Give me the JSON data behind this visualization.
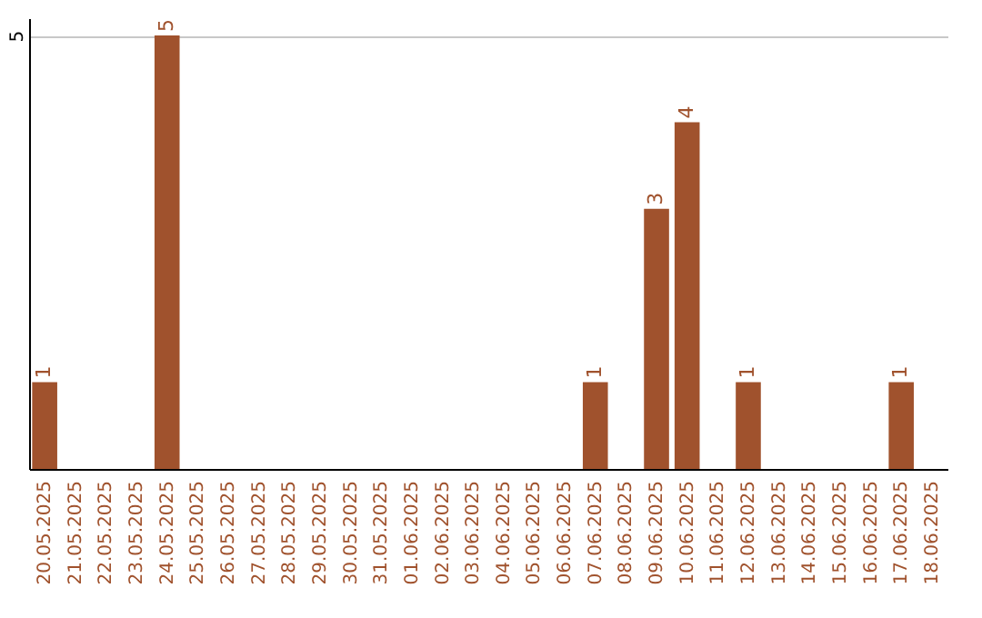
{
  "chart_data": {
    "type": "bar",
    "categories": [
      "20.05.2025",
      "21.05.2025",
      "22.05.2025",
      "23.05.2025",
      "24.05.2025",
      "25.05.2025",
      "26.05.2025",
      "27.05.2025",
      "28.05.2025",
      "29.05.2025",
      "30.05.2025",
      "31.05.2025",
      "01.06.2025",
      "02.06.2025",
      "03.06.2025",
      "04.06.2025",
      "05.06.2025",
      "06.06.2025",
      "07.06.2025",
      "08.06.2025",
      "09.06.2025",
      "10.06.2025",
      "11.06.2025",
      "12.06.2025",
      "13.06.2025",
      "14.06.2025",
      "15.06.2025",
      "16.06.2025",
      "17.06.2025",
      "18.06.2025"
    ],
    "values": [
      1,
      null,
      null,
      null,
      5,
      null,
      null,
      null,
      null,
      null,
      null,
      null,
      null,
      null,
      null,
      null,
      null,
      null,
      1,
      null,
      3,
      4,
      null,
      1,
      null,
      null,
      null,
      null,
      1,
      null
    ],
    "color": "#a0522d",
    "ylim": [
      0,
      5.2
    ],
    "yticks": [
      5
    ],
    "grid": "y",
    "data_labels": true
  }
}
